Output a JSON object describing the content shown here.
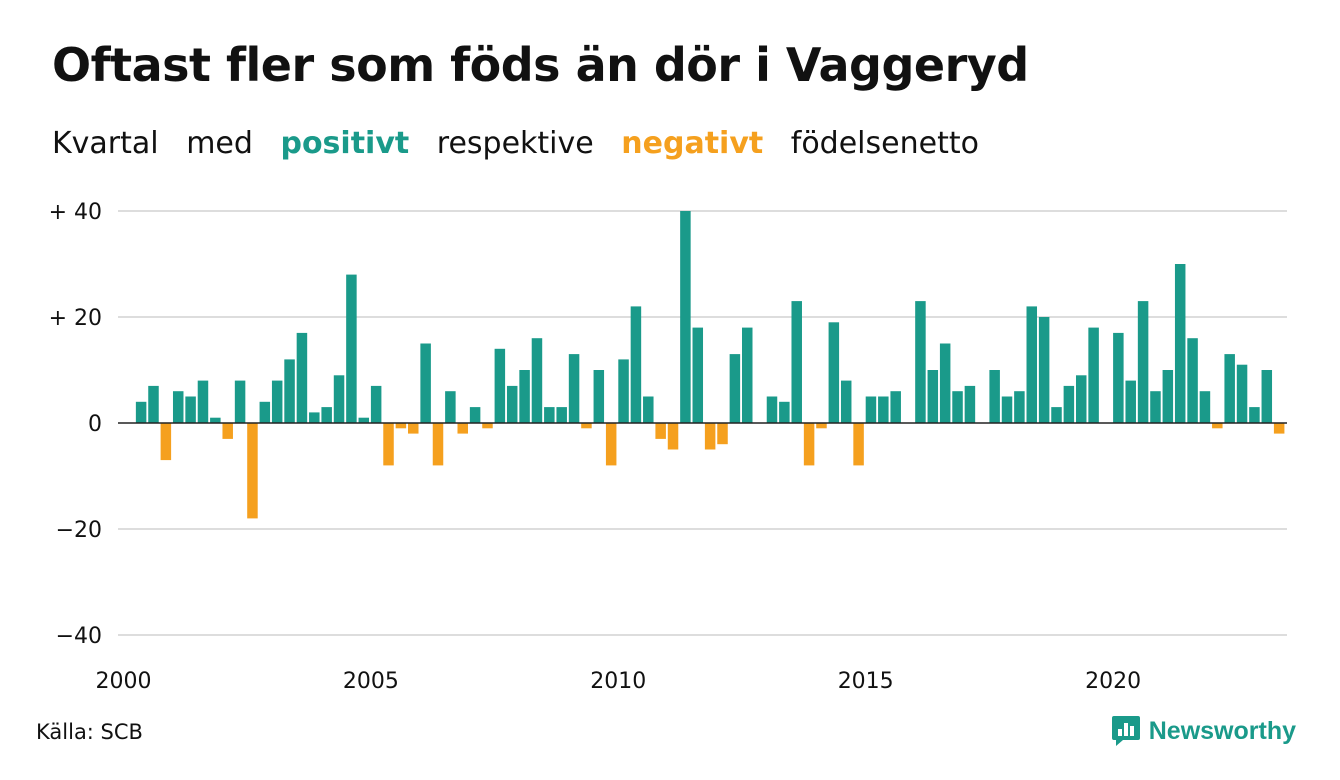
{
  "header": {
    "title": "Oftast fler som föds än dör i Vaggeryd",
    "subtitle_parts": [
      "Kvartal",
      "med",
      "positivt",
      "respektive",
      "negativt",
      "födelsenetto"
    ]
  },
  "colors": {
    "positive": "#1a9a8a",
    "negative": "#f5a01e",
    "grid": "#dddddd",
    "zero_line": "#222222"
  },
  "footer": {
    "source": "Källa: SCB",
    "logo_text": "Newsworthy",
    "logo_icon": "bar-chart-speech-bubble-icon"
  },
  "chart_data": {
    "type": "bar",
    "x_start": "2000 Q1",
    "x_tick_labels": [
      "2000",
      "2005",
      "2010",
      "2015",
      "2020"
    ],
    "y_tick_labels": [
      "+ 40",
      "+ 20",
      "0",
      "−20",
      "−40"
    ],
    "y_ticks": [
      40,
      20,
      0,
      -20,
      -40
    ],
    "ylim": [
      -40,
      40
    ],
    "grid": true,
    "values": [
      0,
      4,
      7,
      -7,
      6,
      5,
      8,
      1,
      -3,
      8,
      -18,
      4,
      8,
      12,
      17,
      2,
      3,
      9,
      28,
      1,
      7,
      -8,
      -1,
      -2,
      15,
      -8,
      6,
      -2,
      3,
      -1,
      14,
      7,
      10,
      16,
      3,
      3,
      13,
      -1,
      10,
      -8,
      12,
      22,
      5,
      -3,
      -5,
      40,
      18,
      -5,
      -4,
      13,
      18,
      0,
      5,
      4,
      23,
      -8,
      -1,
      19,
      8,
      -8,
      5,
      5,
      6,
      0,
      23,
      10,
      15,
      6,
      7,
      0,
      10,
      5,
      6,
      22,
      20,
      3,
      7,
      9,
      18,
      0,
      17,
      8,
      23,
      6,
      10,
      30,
      16,
      6,
      -1,
      13,
      11,
      3,
      10,
      -2
    ]
  }
}
